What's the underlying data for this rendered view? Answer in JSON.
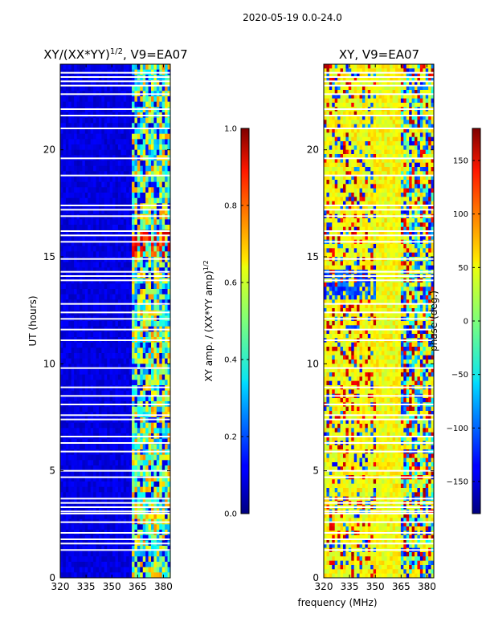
{
  "figure": {
    "suptitle": "2020-05-19 0.0-24.0",
    "shared_xlabel": "frequency (MHz)",
    "shared_ylabel": "UT (hours)"
  },
  "chart_data": [
    {
      "type": "heatmap",
      "title_prefix": "XY/(XX*YY)",
      "title_power": "1/2",
      "title_suffix": ", V9=EA07",
      "x_ticks": [
        "320",
        "335",
        "350",
        "365",
        "380"
      ],
      "x_tick_values": [
        320,
        335,
        350,
        365,
        380
      ],
      "xlim": [
        320,
        384
      ],
      "y_ticks": [
        "0",
        "5",
        "10",
        "15",
        "20"
      ],
      "y_tick_values": [
        0,
        5,
        10,
        15,
        20
      ],
      "ylim": [
        0,
        24
      ],
      "colorbar": {
        "label_main": "XY amp. / (XX*YY amp)",
        "label_power": "1/2",
        "ticks": [
          "0.0",
          "0.2",
          "0.4",
          "0.6",
          "0.8",
          "1.0"
        ],
        "tick_values": [
          0.0,
          0.2,
          0.4,
          0.6,
          0.8,
          1.0
        ],
        "range": [
          0,
          1
        ]
      },
      "colormap": "jet"
    },
    {
      "type": "heatmap",
      "title": "XY, V9=EA07",
      "x_ticks": [
        "320",
        "335",
        "350",
        "365",
        "380"
      ],
      "x_tick_values": [
        320,
        335,
        350,
        365,
        380
      ],
      "xlim": [
        320,
        384
      ],
      "y_ticks": [
        "0",
        "5",
        "10",
        "15",
        "20"
      ],
      "y_tick_values": [
        0,
        5,
        10,
        15,
        20
      ],
      "ylim": [
        0,
        24
      ],
      "colorbar": {
        "label": "phase (deg.)",
        "ticks": [
          "150",
          "100",
          "50",
          "0",
          "−50",
          "−100",
          "−150"
        ],
        "tick_values": [
          150,
          100,
          50,
          0,
          -50,
          -100,
          -150
        ],
        "range": [
          -180,
          180
        ]
      },
      "colormap": "jet"
    }
  ]
}
